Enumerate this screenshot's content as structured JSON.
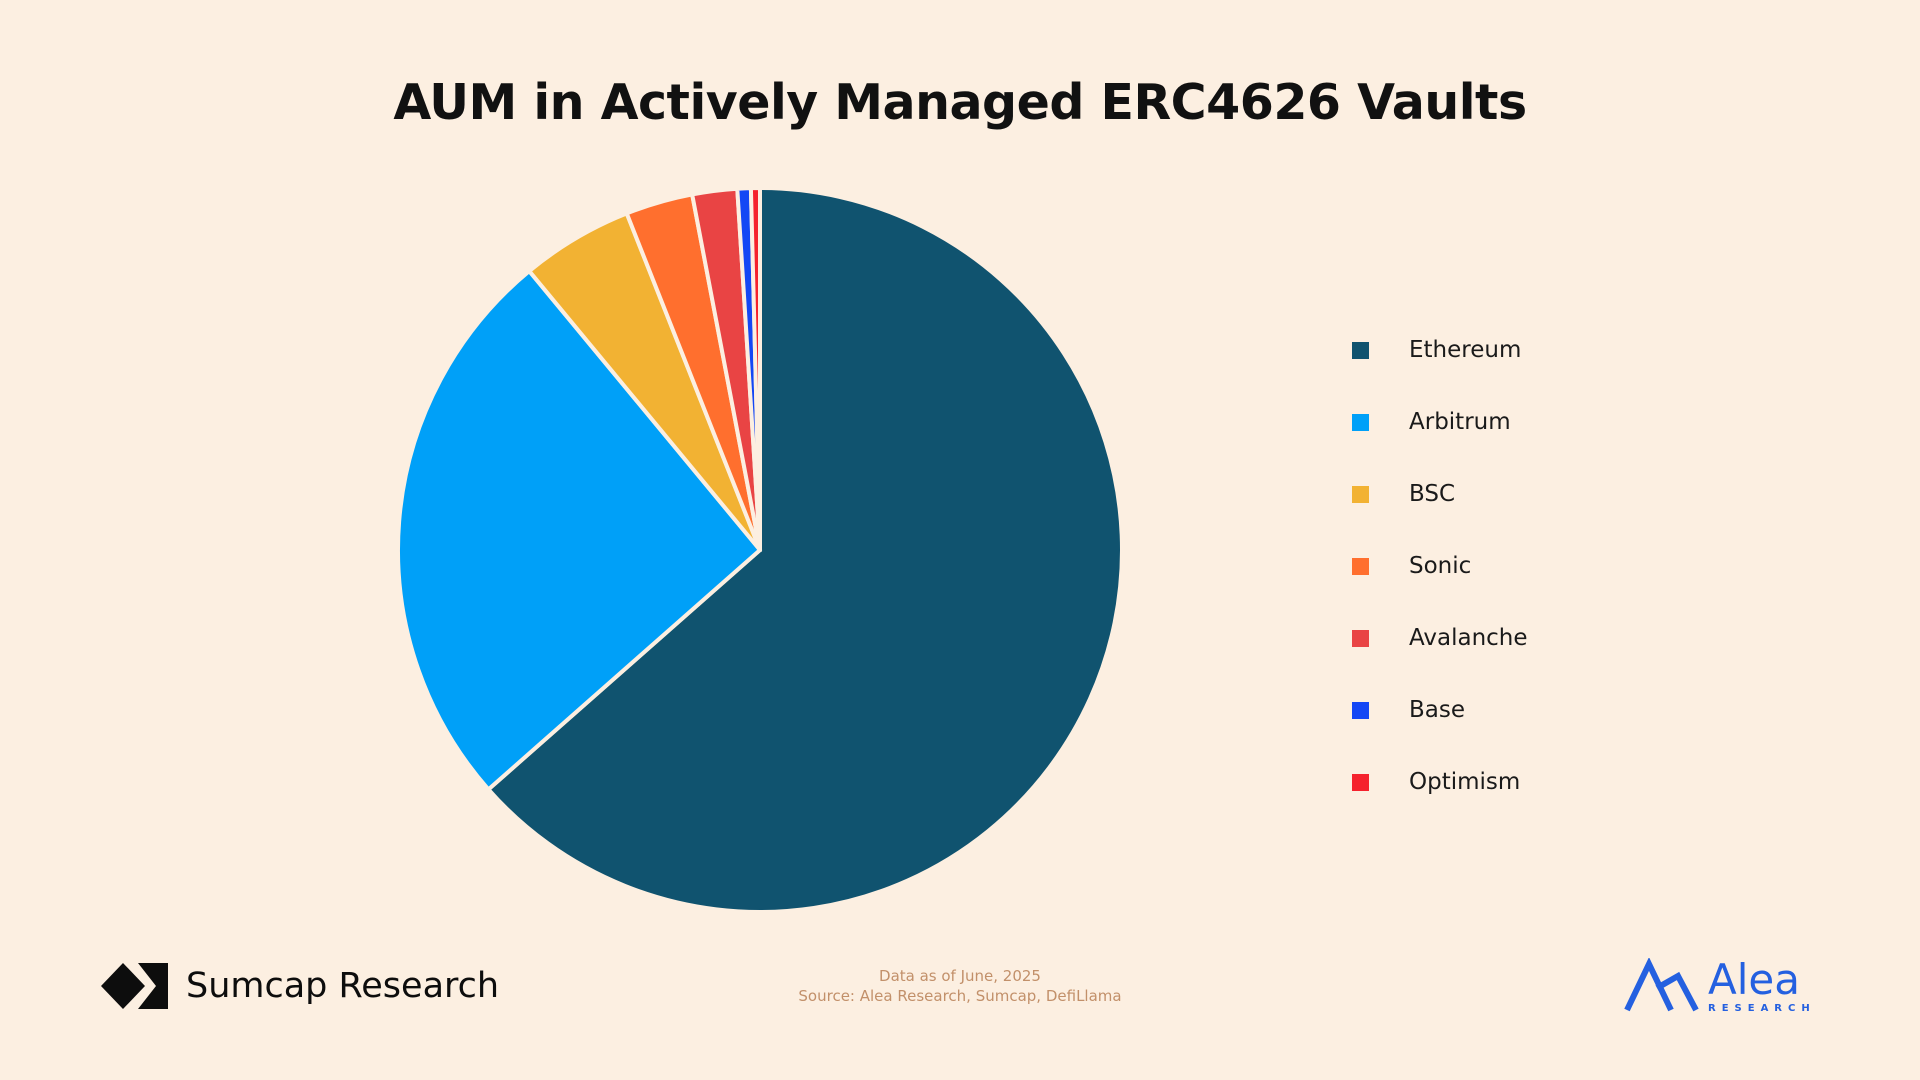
{
  "chart_data": {
    "type": "pie",
    "title": "AUM in Actively Managed ERC4626 Vaults",
    "slices": [
      {
        "label": "Ethereum",
        "value": 63.5,
        "color": "#10536F"
      },
      {
        "label": "Arbitrum",
        "value": 25.5,
        "color": "#00A0F8"
      },
      {
        "label": "BSC",
        "value": 5.0,
        "color": "#F2B233"
      },
      {
        "label": "Sonic",
        "value": 3.0,
        "color": "#FF6F2E"
      },
      {
        "label": "Avalanche",
        "value": 2.0,
        "color": "#E94444"
      },
      {
        "label": "Base",
        "value": 0.6,
        "color": "#1447F5"
      },
      {
        "label": "Optimism",
        "value": 0.4,
        "color": "#F5222D"
      }
    ],
    "legend_position": "right",
    "start_angle": "12 o'clock",
    "direction": "clockwise"
  },
  "footer": {
    "left_brand": "Sumcap Research",
    "note_line1": "Data as of June, 2025",
    "note_line2": "Source: Alea Research, Sumcap, DefiLlama",
    "right_brand_name": "Alea",
    "right_brand_sub": "RESEARCH"
  },
  "colors": {
    "background": "#FCEFE1",
    "footnote": "#C2906A",
    "alea_blue": "#2460E0"
  },
  "icons": {
    "left_logo": "sumcap-logo-icon",
    "right_logo": "alea-logo-icon"
  }
}
